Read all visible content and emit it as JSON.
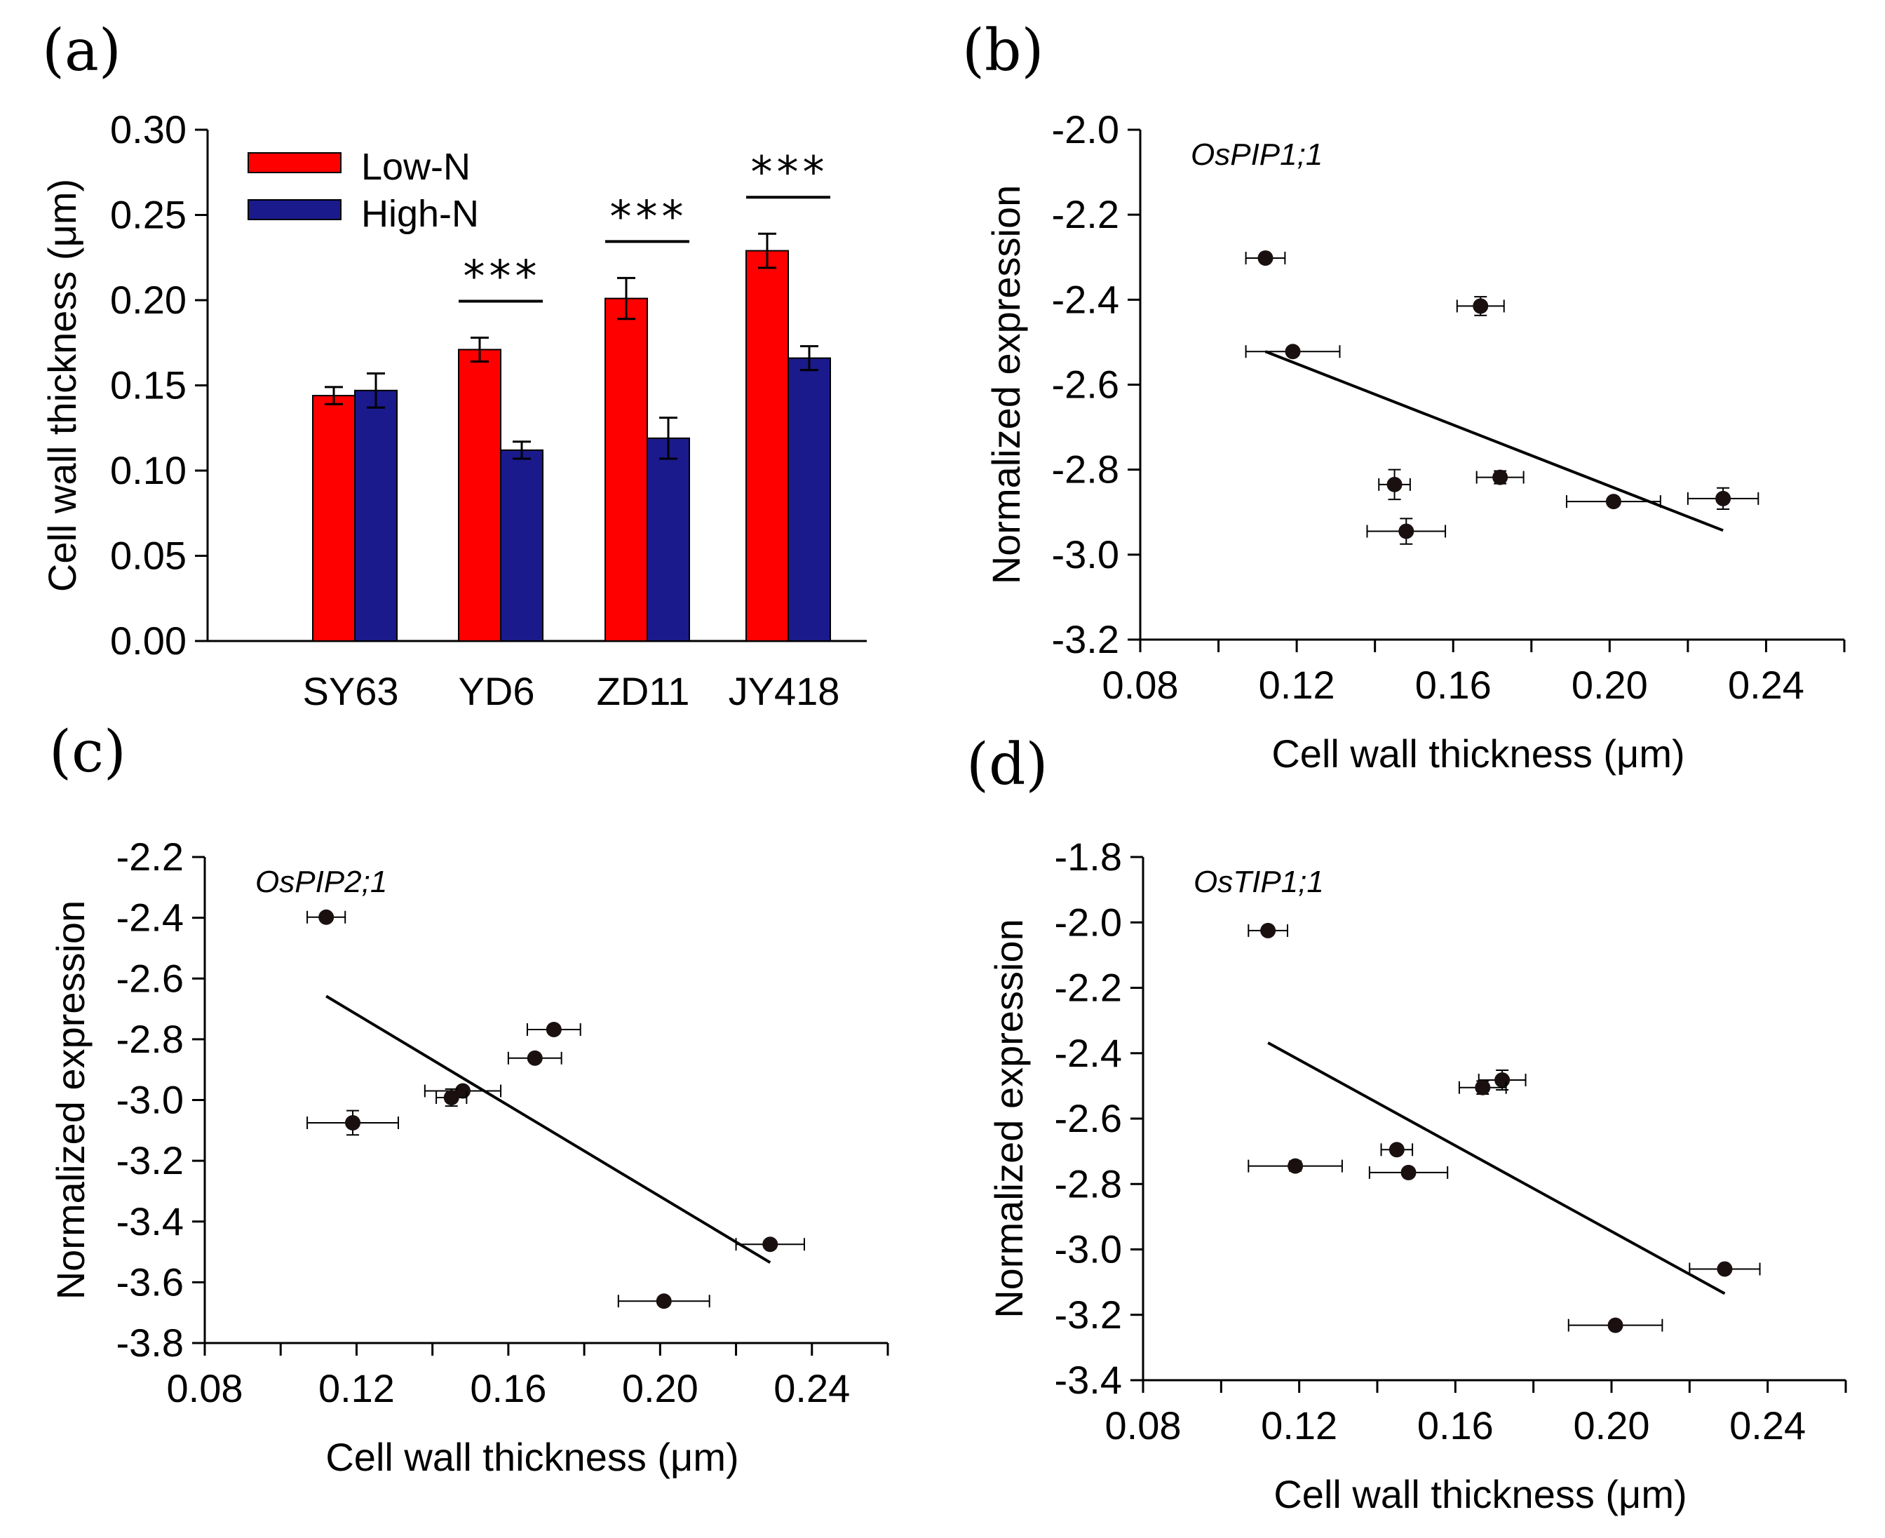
{
  "chart_data": [
    {
      "panel": "(a)",
      "type": "bar",
      "categories": [
        "SY63",
        "YD6",
        "ZD11",
        "JY418"
      ],
      "series": [
        {
          "name": "Low-N",
          "color": "#ff0000",
          "values": [
            0.144,
            0.171,
            0.201,
            0.229
          ],
          "errors": [
            0.005,
            0.007,
            0.012,
            0.01
          ]
        },
        {
          "name": "High-N",
          "color": "#1a1a8c",
          "values": [
            0.147,
            0.112,
            0.119,
            0.166
          ],
          "errors": [
            0.01,
            0.005,
            0.012,
            0.007
          ]
        }
      ],
      "significance": [
        "",
        "***",
        "***",
        "***"
      ],
      "ylabel": "Cell wall thickness (μm)",
      "xlabel": "",
      "ylim": [
        0,
        0.3
      ],
      "yticks": [
        "0.00",
        "0.05",
        "0.10",
        "0.15",
        "0.20",
        "0.25",
        "0.30"
      ],
      "legend_position": "top-left"
    },
    {
      "panel": "(b)",
      "type": "scatter",
      "gene": "OsPIP1;1",
      "points": [
        {
          "x": 0.112,
          "y": -2.302,
          "xerr": 0.005,
          "yerr": 0.008
        },
        {
          "x": 0.119,
          "y": -2.522,
          "xerr": 0.012,
          "yerr": 0.008
        },
        {
          "x": 0.167,
          "y": -2.415,
          "xerr": 0.006,
          "yerr": 0.022
        },
        {
          "x": 0.145,
          "y": -2.835,
          "xerr": 0.004,
          "yerr": 0.035
        },
        {
          "x": 0.172,
          "y": -2.818,
          "xerr": 0.006,
          "yerr": 0.015
        },
        {
          "x": 0.148,
          "y": -2.945,
          "xerr": 0.01,
          "yerr": 0.03
        },
        {
          "x": 0.201,
          "y": -2.875,
          "xerr": 0.012,
          "yerr": 0.008
        },
        {
          "x": 0.229,
          "y": -2.868,
          "xerr": 0.009,
          "yerr": 0.025
        }
      ],
      "fit_line": [
        {
          "x": 0.112,
          "y": -2.522
        },
        {
          "x": 0.229,
          "y": -2.943
        }
      ],
      "xlabel": "Cell wall thickness (μm)",
      "ylabel": "Normalized expression",
      "xlim": [
        0.08,
        0.26
      ],
      "ylim": [
        -3.2,
        -2.0
      ],
      "xticks": [
        "0.08",
        "0.12",
        "0.16",
        "0.20",
        "0.24"
      ],
      "yticks": [
        "-2.0",
        "-2.2",
        "-2.4",
        "-2.6",
        "-2.8",
        "-3.0",
        "-3.2"
      ]
    },
    {
      "panel": "(c)",
      "type": "scatter",
      "gene": "OsPIP2;1",
      "points": [
        {
          "x": 0.112,
          "y": -2.398,
          "xerr": 0.005,
          "yerr": 0.008
        },
        {
          "x": 0.119,
          "y": -3.075,
          "xerr": 0.012,
          "yerr": 0.04
        },
        {
          "x": 0.172,
          "y": -2.768,
          "xerr": 0.007,
          "yerr": 0.008
        },
        {
          "x": 0.167,
          "y": -2.862,
          "xerr": 0.007,
          "yerr": 0.008
        },
        {
          "x": 0.148,
          "y": -2.97,
          "xerr": 0.01,
          "yerr": 0.008
        },
        {
          "x": 0.145,
          "y": -2.992,
          "xerr": 0.004,
          "yerr": 0.028
        },
        {
          "x": 0.229,
          "y": -3.475,
          "xerr": 0.009,
          "yerr": 0.008
        },
        {
          "x": 0.201,
          "y": -3.662,
          "xerr": 0.012,
          "yerr": 0.008
        }
      ],
      "fit_line": [
        {
          "x": 0.112,
          "y": -2.658
        },
        {
          "x": 0.229,
          "y": -3.535
        }
      ],
      "xlabel": "Cell wall thickness (μm)",
      "ylabel": "Normalized expression",
      "xlim": [
        0.08,
        0.26
      ],
      "ylim": [
        -3.8,
        -2.2
      ],
      "xticks": [
        "0.08",
        "0.12",
        "0.16",
        "0.20",
        "0.24"
      ],
      "yticks": [
        "-2.2",
        "-2.4",
        "-2.6",
        "-2.8",
        "-3.0",
        "-3.2",
        "-3.4",
        "-3.6",
        "-3.8"
      ]
    },
    {
      "panel": "(d)",
      "type": "scatter",
      "gene": "OsTIP1;1",
      "points": [
        {
          "x": 0.112,
          "y": -2.025,
          "xerr": 0.005,
          "yerr": 0.008
        },
        {
          "x": 0.119,
          "y": -2.745,
          "xerr": 0.012,
          "yerr": 0.015
        },
        {
          "x": 0.172,
          "y": -2.482,
          "xerr": 0.006,
          "yerr": 0.03
        },
        {
          "x": 0.167,
          "y": -2.505,
          "xerr": 0.006,
          "yerr": 0.02
        },
        {
          "x": 0.145,
          "y": -2.695,
          "xerr": 0.004,
          "yerr": 0.01
        },
        {
          "x": 0.148,
          "y": -2.765,
          "xerr": 0.01,
          "yerr": 0.008
        },
        {
          "x": 0.229,
          "y": -3.06,
          "xerr": 0.009,
          "yerr": 0.008
        },
        {
          "x": 0.201,
          "y": -3.232,
          "xerr": 0.012,
          "yerr": 0.008
        }
      ],
      "fit_line": [
        {
          "x": 0.112,
          "y": -2.368
        },
        {
          "x": 0.229,
          "y": -3.135
        }
      ],
      "xlabel": "Cell wall thickness (μm)",
      "ylabel": "Normalized expression",
      "xlim": [
        0.08,
        0.26
      ],
      "ylim": [
        -3.4,
        -1.8
      ],
      "xticks": [
        "0.08",
        "0.12",
        "0.16",
        "0.20",
        "0.24"
      ],
      "yticks": [
        "-1.8",
        "-2.0",
        "-2.2",
        "-2.4",
        "-2.6",
        "-2.8",
        "-3.0",
        "-3.2",
        "-3.4"
      ]
    }
  ]
}
